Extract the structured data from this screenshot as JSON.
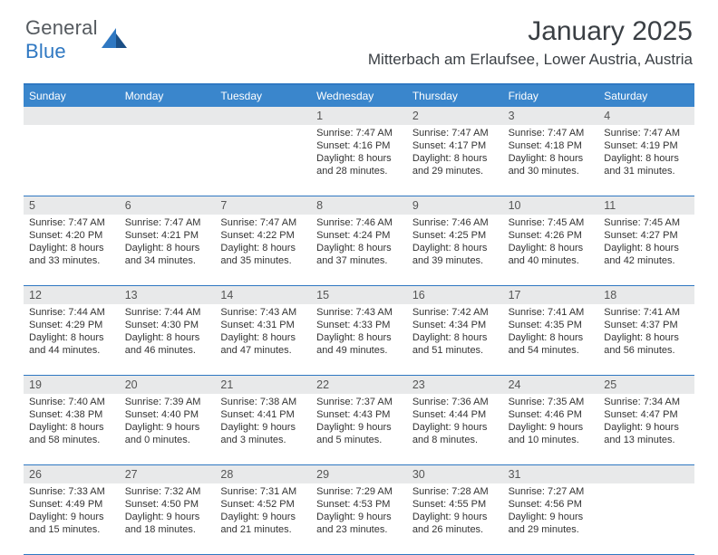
{
  "brand": {
    "part1": "General",
    "part2": "Blue"
  },
  "title": "January 2025",
  "location": "Mitterbach am Erlaufsee, Lower Austria, Austria",
  "colors": {
    "headerBar": "#3a86cc",
    "topRule": "#2f78c2",
    "dayBg": "#e8e9ea",
    "text": "#333333"
  },
  "dow": [
    "Sunday",
    "Monday",
    "Tuesday",
    "Wednesday",
    "Thursday",
    "Friday",
    "Saturday"
  ],
  "weeks": [
    [
      {
        "empty": true
      },
      {
        "empty": true
      },
      {
        "empty": true
      },
      {
        "day": "1",
        "sunrise": "Sunrise: 7:47 AM",
        "sunset": "Sunset: 4:16 PM",
        "dl1": "Daylight: 8 hours",
        "dl2": "and 28 minutes."
      },
      {
        "day": "2",
        "sunrise": "Sunrise: 7:47 AM",
        "sunset": "Sunset: 4:17 PM",
        "dl1": "Daylight: 8 hours",
        "dl2": "and 29 minutes."
      },
      {
        "day": "3",
        "sunrise": "Sunrise: 7:47 AM",
        "sunset": "Sunset: 4:18 PM",
        "dl1": "Daylight: 8 hours",
        "dl2": "and 30 minutes."
      },
      {
        "day": "4",
        "sunrise": "Sunrise: 7:47 AM",
        "sunset": "Sunset: 4:19 PM",
        "dl1": "Daylight: 8 hours",
        "dl2": "and 31 minutes."
      }
    ],
    [
      {
        "day": "5",
        "sunrise": "Sunrise: 7:47 AM",
        "sunset": "Sunset: 4:20 PM",
        "dl1": "Daylight: 8 hours",
        "dl2": "and 33 minutes."
      },
      {
        "day": "6",
        "sunrise": "Sunrise: 7:47 AM",
        "sunset": "Sunset: 4:21 PM",
        "dl1": "Daylight: 8 hours",
        "dl2": "and 34 minutes."
      },
      {
        "day": "7",
        "sunrise": "Sunrise: 7:47 AM",
        "sunset": "Sunset: 4:22 PM",
        "dl1": "Daylight: 8 hours",
        "dl2": "and 35 minutes."
      },
      {
        "day": "8",
        "sunrise": "Sunrise: 7:46 AM",
        "sunset": "Sunset: 4:24 PM",
        "dl1": "Daylight: 8 hours",
        "dl2": "and 37 minutes."
      },
      {
        "day": "9",
        "sunrise": "Sunrise: 7:46 AM",
        "sunset": "Sunset: 4:25 PM",
        "dl1": "Daylight: 8 hours",
        "dl2": "and 39 minutes."
      },
      {
        "day": "10",
        "sunrise": "Sunrise: 7:45 AM",
        "sunset": "Sunset: 4:26 PM",
        "dl1": "Daylight: 8 hours",
        "dl2": "and 40 minutes."
      },
      {
        "day": "11",
        "sunrise": "Sunrise: 7:45 AM",
        "sunset": "Sunset: 4:27 PM",
        "dl1": "Daylight: 8 hours",
        "dl2": "and 42 minutes."
      }
    ],
    [
      {
        "day": "12",
        "sunrise": "Sunrise: 7:44 AM",
        "sunset": "Sunset: 4:29 PM",
        "dl1": "Daylight: 8 hours",
        "dl2": "and 44 minutes."
      },
      {
        "day": "13",
        "sunrise": "Sunrise: 7:44 AM",
        "sunset": "Sunset: 4:30 PM",
        "dl1": "Daylight: 8 hours",
        "dl2": "and 46 minutes."
      },
      {
        "day": "14",
        "sunrise": "Sunrise: 7:43 AM",
        "sunset": "Sunset: 4:31 PM",
        "dl1": "Daylight: 8 hours",
        "dl2": "and 47 minutes."
      },
      {
        "day": "15",
        "sunrise": "Sunrise: 7:43 AM",
        "sunset": "Sunset: 4:33 PM",
        "dl1": "Daylight: 8 hours",
        "dl2": "and 49 minutes."
      },
      {
        "day": "16",
        "sunrise": "Sunrise: 7:42 AM",
        "sunset": "Sunset: 4:34 PM",
        "dl1": "Daylight: 8 hours",
        "dl2": "and 51 minutes."
      },
      {
        "day": "17",
        "sunrise": "Sunrise: 7:41 AM",
        "sunset": "Sunset: 4:35 PM",
        "dl1": "Daylight: 8 hours",
        "dl2": "and 54 minutes."
      },
      {
        "day": "18",
        "sunrise": "Sunrise: 7:41 AM",
        "sunset": "Sunset: 4:37 PM",
        "dl1": "Daylight: 8 hours",
        "dl2": "and 56 minutes."
      }
    ],
    [
      {
        "day": "19",
        "sunrise": "Sunrise: 7:40 AM",
        "sunset": "Sunset: 4:38 PM",
        "dl1": "Daylight: 8 hours",
        "dl2": "and 58 minutes."
      },
      {
        "day": "20",
        "sunrise": "Sunrise: 7:39 AM",
        "sunset": "Sunset: 4:40 PM",
        "dl1": "Daylight: 9 hours",
        "dl2": "and 0 minutes."
      },
      {
        "day": "21",
        "sunrise": "Sunrise: 7:38 AM",
        "sunset": "Sunset: 4:41 PM",
        "dl1": "Daylight: 9 hours",
        "dl2": "and 3 minutes."
      },
      {
        "day": "22",
        "sunrise": "Sunrise: 7:37 AM",
        "sunset": "Sunset: 4:43 PM",
        "dl1": "Daylight: 9 hours",
        "dl2": "and 5 minutes."
      },
      {
        "day": "23",
        "sunrise": "Sunrise: 7:36 AM",
        "sunset": "Sunset: 4:44 PM",
        "dl1": "Daylight: 9 hours",
        "dl2": "and 8 minutes."
      },
      {
        "day": "24",
        "sunrise": "Sunrise: 7:35 AM",
        "sunset": "Sunset: 4:46 PM",
        "dl1": "Daylight: 9 hours",
        "dl2": "and 10 minutes."
      },
      {
        "day": "25",
        "sunrise": "Sunrise: 7:34 AM",
        "sunset": "Sunset: 4:47 PM",
        "dl1": "Daylight: 9 hours",
        "dl2": "and 13 minutes."
      }
    ],
    [
      {
        "day": "26",
        "sunrise": "Sunrise: 7:33 AM",
        "sunset": "Sunset: 4:49 PM",
        "dl1": "Daylight: 9 hours",
        "dl2": "and 15 minutes."
      },
      {
        "day": "27",
        "sunrise": "Sunrise: 7:32 AM",
        "sunset": "Sunset: 4:50 PM",
        "dl1": "Daylight: 9 hours",
        "dl2": "and 18 minutes."
      },
      {
        "day": "28",
        "sunrise": "Sunrise: 7:31 AM",
        "sunset": "Sunset: 4:52 PM",
        "dl1": "Daylight: 9 hours",
        "dl2": "and 21 minutes."
      },
      {
        "day": "29",
        "sunrise": "Sunrise: 7:29 AM",
        "sunset": "Sunset: 4:53 PM",
        "dl1": "Daylight: 9 hours",
        "dl2": "and 23 minutes."
      },
      {
        "day": "30",
        "sunrise": "Sunrise: 7:28 AM",
        "sunset": "Sunset: 4:55 PM",
        "dl1": "Daylight: 9 hours",
        "dl2": "and 26 minutes."
      },
      {
        "day": "31",
        "sunrise": "Sunrise: 7:27 AM",
        "sunset": "Sunset: 4:56 PM",
        "dl1": "Daylight: 9 hours",
        "dl2": "and 29 minutes."
      },
      {
        "empty": true
      }
    ]
  ]
}
